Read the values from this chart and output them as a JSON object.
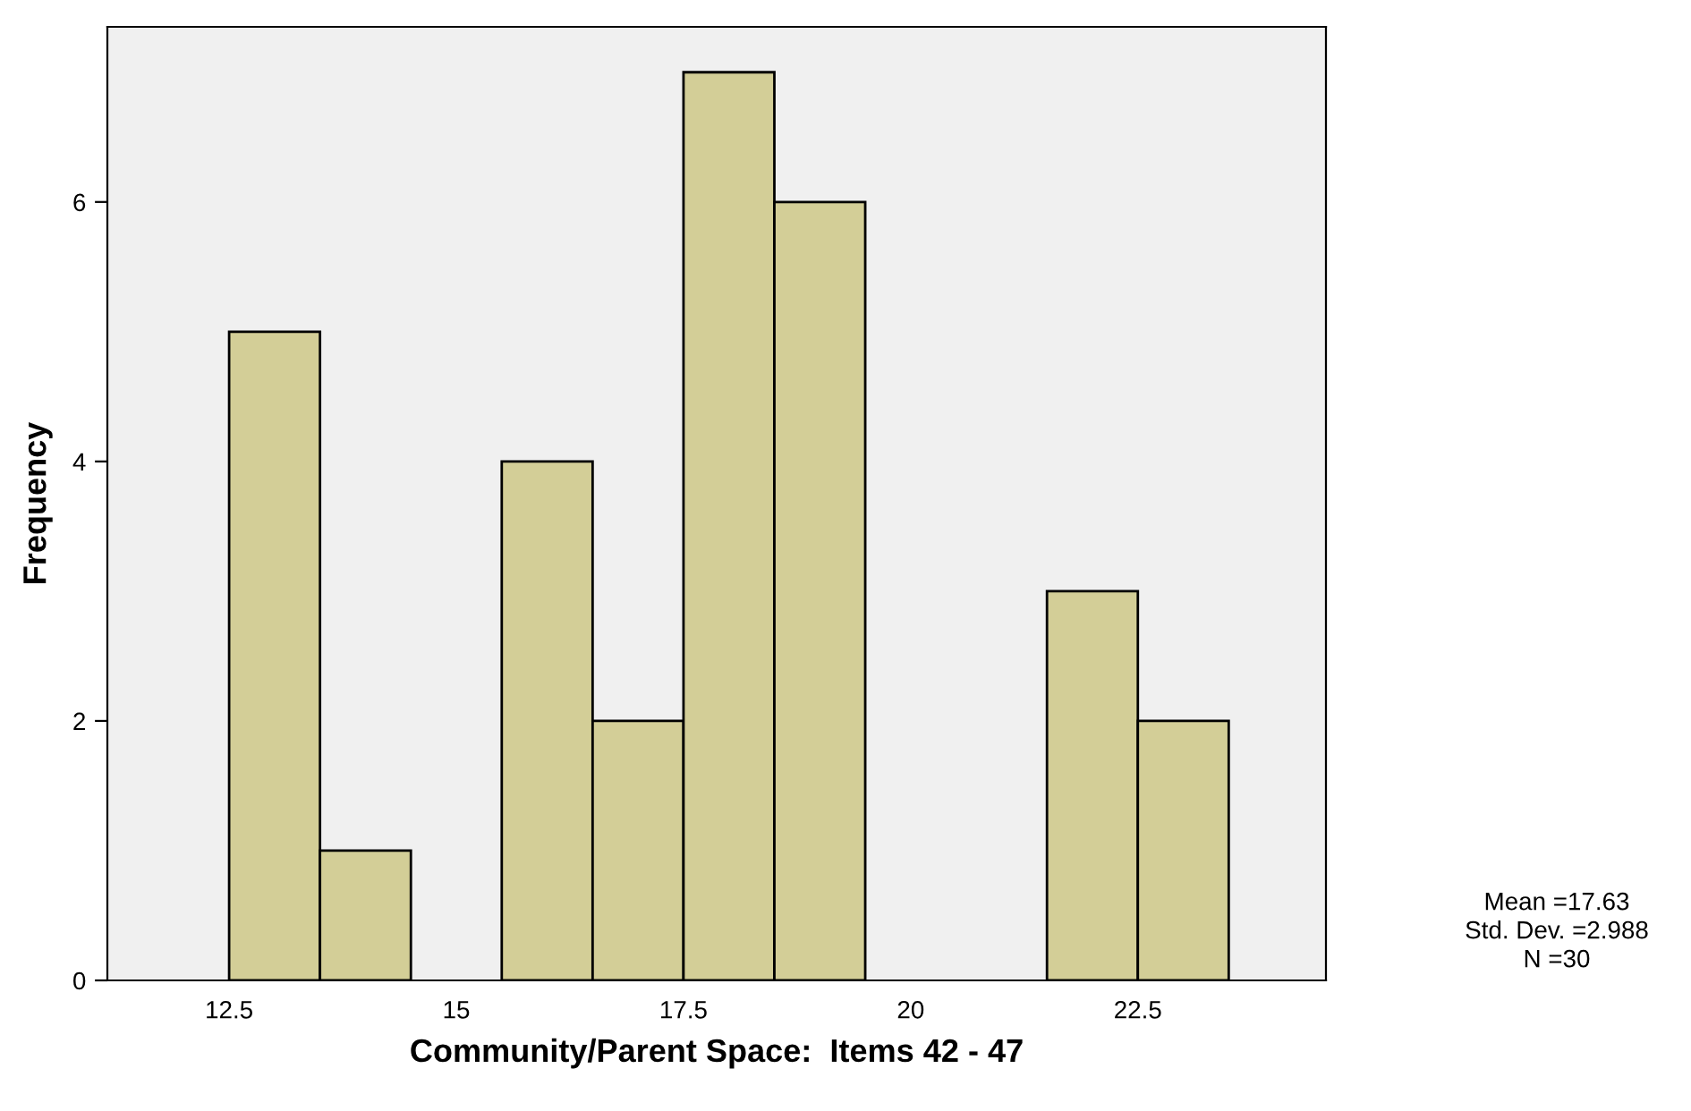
{
  "chart_data": {
    "type": "histogram",
    "xlabel": "Community/Parent Space:  Items 42 - 47",
    "ylabel": "Frequency",
    "bins": [
      12.5,
      13.5,
      14.5,
      15.5,
      16.5,
      17.5,
      18.5,
      19.5,
      20.5,
      21.5,
      22.5,
      23.5
    ],
    "values": [
      5,
      1,
      0,
      4,
      2,
      7,
      6,
      0,
      0,
      3,
      2
    ],
    "color": "#d3ce97",
    "xlim": [
      11.16,
      24.57
    ],
    "ylim": [
      0,
      7.35
    ],
    "xticks": [
      12.5,
      15,
      17.5,
      20,
      22.5
    ],
    "yticks": [
      0,
      2,
      4,
      6
    ],
    "grid": false,
    "legend": false,
    "annotations": [
      "Mean =17.63",
      "Std. Dev. =2.988",
      "N =30"
    ]
  }
}
